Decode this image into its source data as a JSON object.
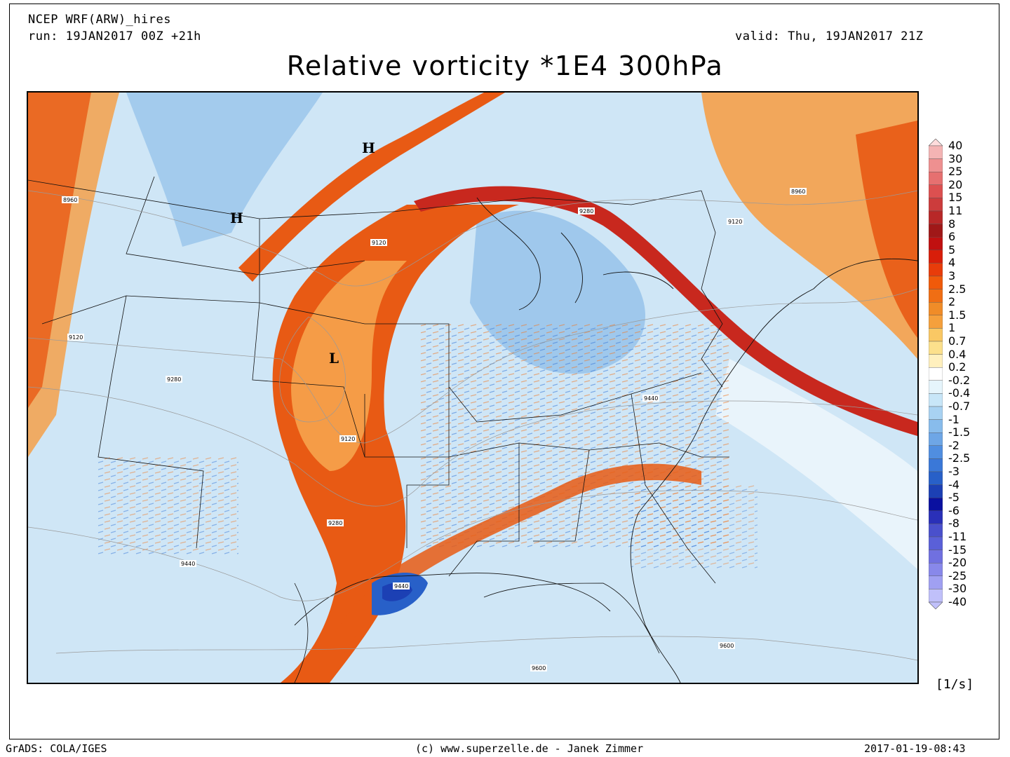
{
  "header": {
    "model": "NCEP WRF(ARW)_hires",
    "run": "run: 19JAN2017 00Z +21h",
    "valid": "valid: Thu, 19JAN2017 21Z",
    "title": "Relative vorticity *1E4 300hPa"
  },
  "map": {
    "pressure_systems": [
      {
        "type": "H",
        "label": "H",
        "region": "southern Canada / Montana border"
      },
      {
        "type": "H",
        "label": "H",
        "region": "Montana / Idaho"
      },
      {
        "type": "L",
        "label": "L",
        "region": "Kansas / Nebraska"
      }
    ],
    "height_contours": [
      "8960",
      "9120",
      "9120",
      "9120",
      "9280",
      "9280",
      "9440",
      "9440",
      "9440",
      "9600",
      "9600",
      "9120",
      "9280",
      "8960"
    ],
    "colors": {
      "positive_strong": "#c8281e",
      "positive_mid": "#e85a14",
      "positive_weak": "#f5a04a",
      "neutral": "#ffffff",
      "negative_weak": "#cfe6f6",
      "negative_mid": "#7fb4e6",
      "negative_strong": "#2f6fd2"
    }
  },
  "legend": {
    "levels": [
      "40",
      "30",
      "25",
      "20",
      "15",
      "11",
      "8",
      "6",
      "5",
      "4",
      "3",
      "2.5",
      "2",
      "1.5",
      "1",
      "0.7",
      "0.4",
      "0.2",
      "-0.2",
      "-0.4",
      "-0.7",
      "-1",
      "-1.5",
      "-2",
      "-2.5",
      "-3",
      "-4",
      "-5",
      "-6",
      "-8",
      "-11",
      "-15",
      "-20",
      "-25",
      "-30",
      "-40"
    ],
    "colors": [
      "#ffdcdc",
      "#f4b4b4",
      "#ee9090",
      "#e67070",
      "#dc5050",
      "#cc3c3c",
      "#b82828",
      "#a01818",
      "#c01010",
      "#d81e0a",
      "#e83c0a",
      "#f05a0a",
      "#f06e14",
      "#f08c28",
      "#f5a03c",
      "#fac864",
      "#fce08c",
      "#fff0be",
      "#ffffff",
      "#e6f5fc",
      "#c8e6f8",
      "#a8d2f2",
      "#88bcec",
      "#6ea6e6",
      "#508ee0",
      "#3a78d8",
      "#2860c8",
      "#1c40b4",
      "#0a10a0",
      "#2a30b8",
      "#4a50cc",
      "#5a60d8",
      "#7070e0",
      "#8888ea",
      "#a0a0f2",
      "#c0c0fa"
    ],
    "units": "[1/s]"
  },
  "footer": {
    "left": "GrADS: COLA/IGES",
    "center": "(c) www.superzelle.de - Janek Zimmer",
    "right": "2017-01-19-08:43"
  }
}
